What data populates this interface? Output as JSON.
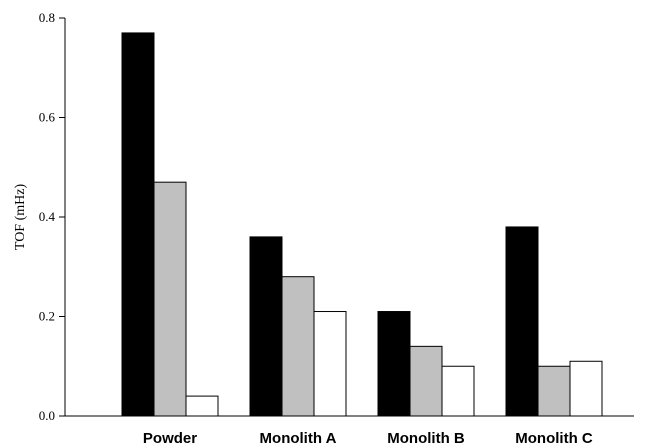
{
  "chart_data": {
    "type": "bar",
    "title": "",
    "xlabel": "",
    "ylabel": "TOF (mHz)",
    "ylim": [
      0,
      0.8
    ],
    "yticks": [
      "0.0",
      "0.2",
      "0.4",
      "0.6",
      "0.8"
    ],
    "grid": false,
    "legend": "none",
    "categories": [
      "Powder",
      "Monolith A",
      "Monolith B",
      "Monolith C"
    ],
    "series": [
      {
        "color": "#000000",
        "values": [
          0.77,
          0.36,
          0.21,
          0.38
        ]
      },
      {
        "color": "#c0c0c0",
        "values": [
          0.47,
          0.28,
          0.14,
          0.1
        ]
      },
      {
        "color": "#ffffff",
        "values": [
          0.04,
          0.21,
          0.1,
          0.11
        ]
      }
    ]
  }
}
